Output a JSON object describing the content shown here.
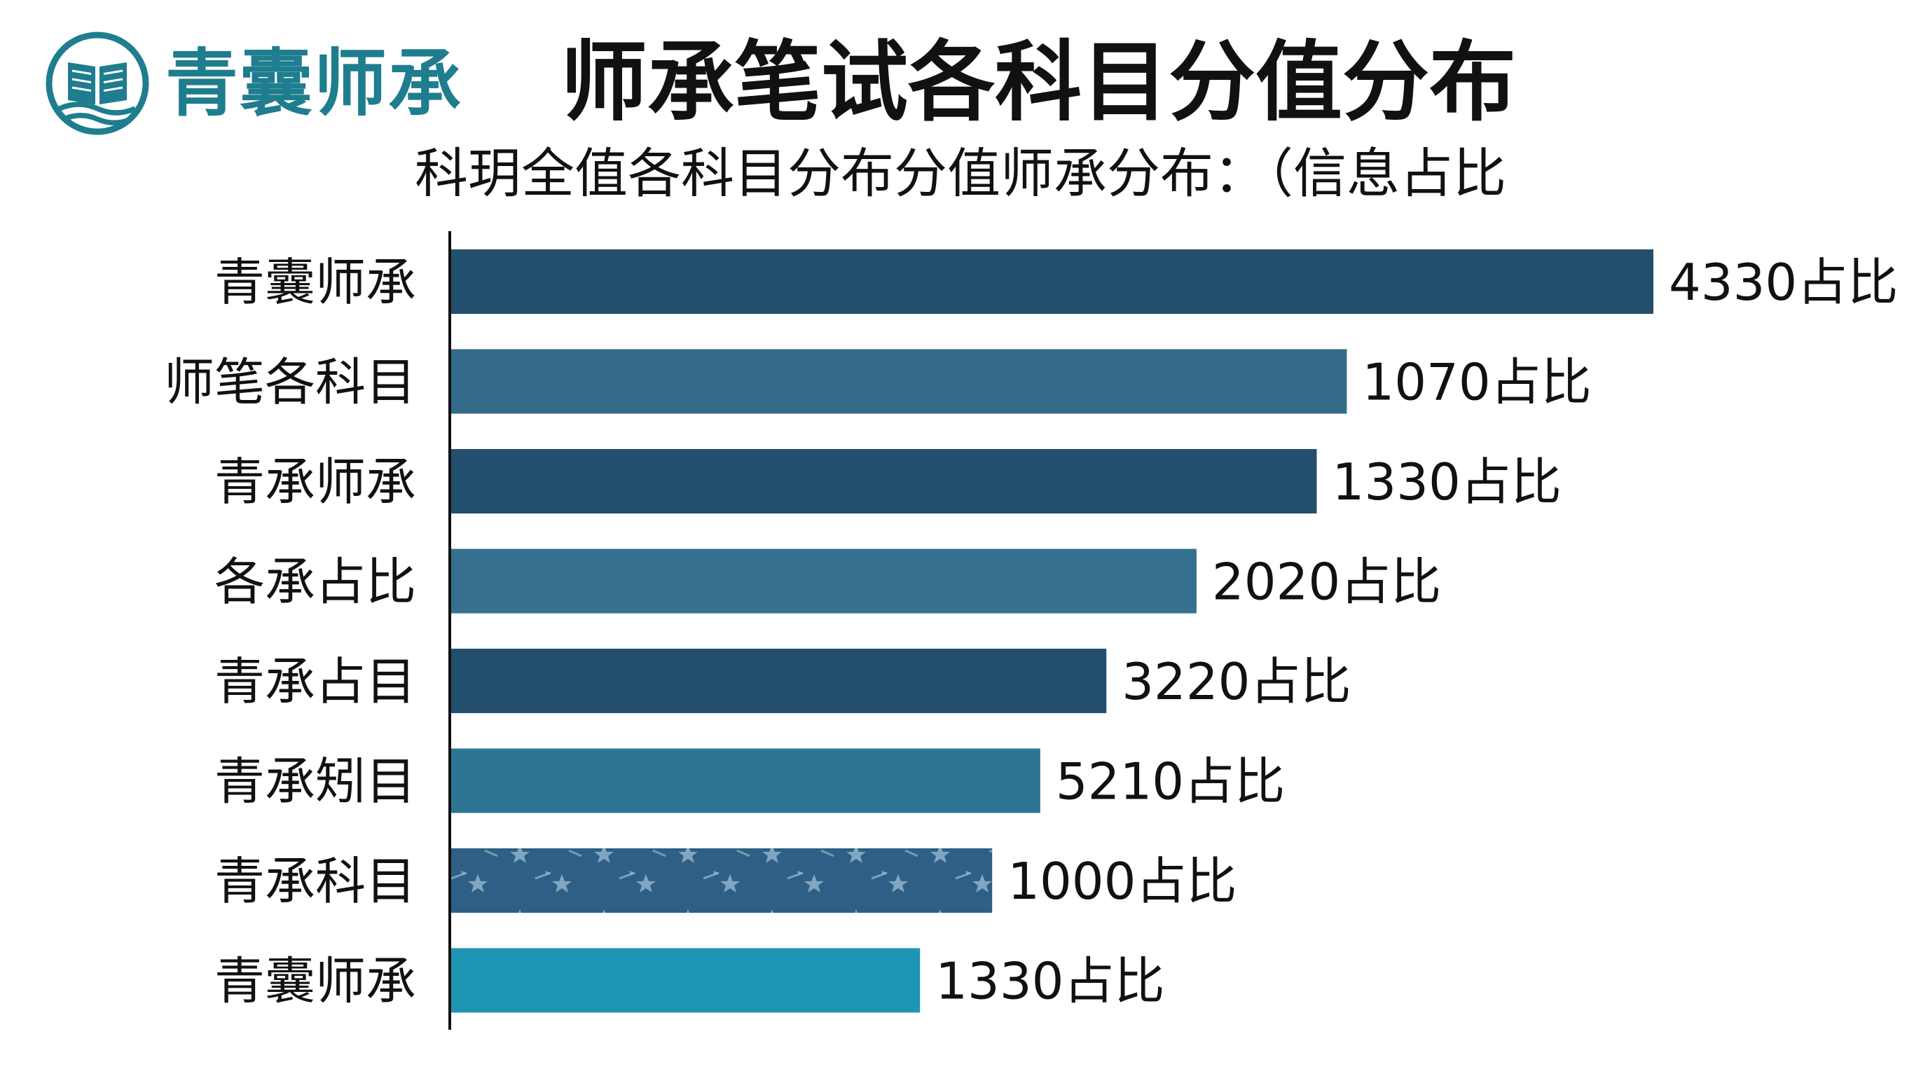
{
  "brand": {
    "name": "青囊师承",
    "logo_icon": "open-book-waves-icon",
    "color": "#1e7d8e"
  },
  "chart_data": {
    "type": "bar",
    "orientation": "horizontal",
    "title": "师承笔试各科目分值分布",
    "subtitle": "科玥全值各科目分布分值师承分布：（信息占比",
    "xlabel": "",
    "ylabel": "",
    "categories": [
      "青囊师承",
      "师笔各科目",
      "青承师承",
      "各承占比",
      "青承占目",
      "青承矧目",
      "青承科目",
      "青囊师承"
    ],
    "values": [
      4330,
      1070,
      1330,
      2020,
      3220,
      5210,
      1000,
      1330
    ],
    "bar_lengths": [
      1.0,
      0.745,
      0.72,
      0.62,
      0.545,
      0.49,
      0.45,
      0.39
    ],
    "data_labels": [
      "4330占比",
      "1070占比",
      "1330占比",
      "2020占比",
      "3220占比",
      "5210占比",
      "1000占比",
      "1330占比"
    ],
    "colors": [
      "#244e6d",
      "#336a89",
      "#244e6d",
      "#36708e",
      "#244e6d",
      "#2e7594",
      "#2f5f84",
      "#1e95b2"
    ],
    "patterned_bar_index": 6,
    "grid": false,
    "legend": "none"
  }
}
